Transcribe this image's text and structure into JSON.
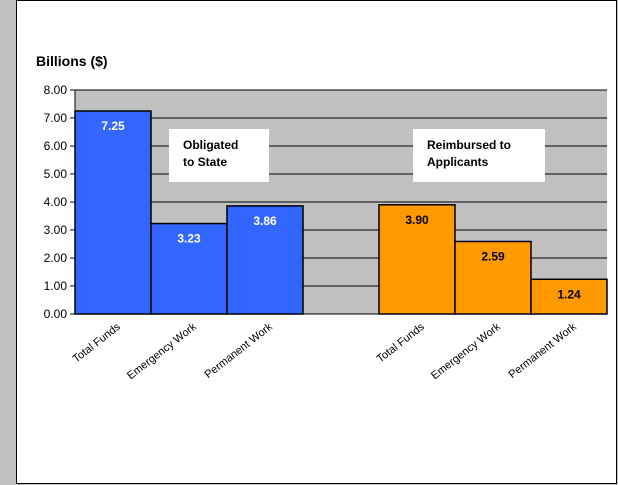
{
  "chart_data": {
    "type": "bar",
    "ylabel": "Billions ($)",
    "ylim": [
      0,
      8
    ],
    "yticks": [
      "0.00",
      "1.00",
      "2.00",
      "3.00",
      "4.00",
      "5.00",
      "6.00",
      "7.00",
      "8.00"
    ],
    "grid": true,
    "categories": [
      "Total Funds",
      "Emergency  Work",
      "Permanent  Work",
      "",
      "Total Funds",
      "Emergency  Work",
      "Permanent  Work"
    ],
    "groups": [
      {
        "label": "Obligated to State",
        "label_lines": [
          "Obligated",
          "to State"
        ],
        "color": "#3366ff",
        "label_color": "#ffffff",
        "categories": [
          "Total Funds",
          "Emergency  Work",
          "Permanent  Work"
        ],
        "values": [
          7.25,
          3.23,
          3.86
        ],
        "value_labels": [
          "7.25",
          "3.23",
          "3.86"
        ]
      },
      {
        "label": "Reimbursed to Applicants",
        "label_lines": [
          "Reimbursed to",
          "Applicants"
        ],
        "color": "#ff9900",
        "label_color": "#000000",
        "categories": [
          "Total Funds",
          "Emergency  Work",
          "Permanent  Work"
        ],
        "values": [
          3.9,
          2.59,
          1.24
        ],
        "value_labels": [
          "3.90",
          "2.59",
          "1.24"
        ]
      }
    ],
    "colors": {
      "plot_background": "#c0c0c0",
      "gridline": "#000000",
      "bar_outline": "#000000"
    }
  }
}
